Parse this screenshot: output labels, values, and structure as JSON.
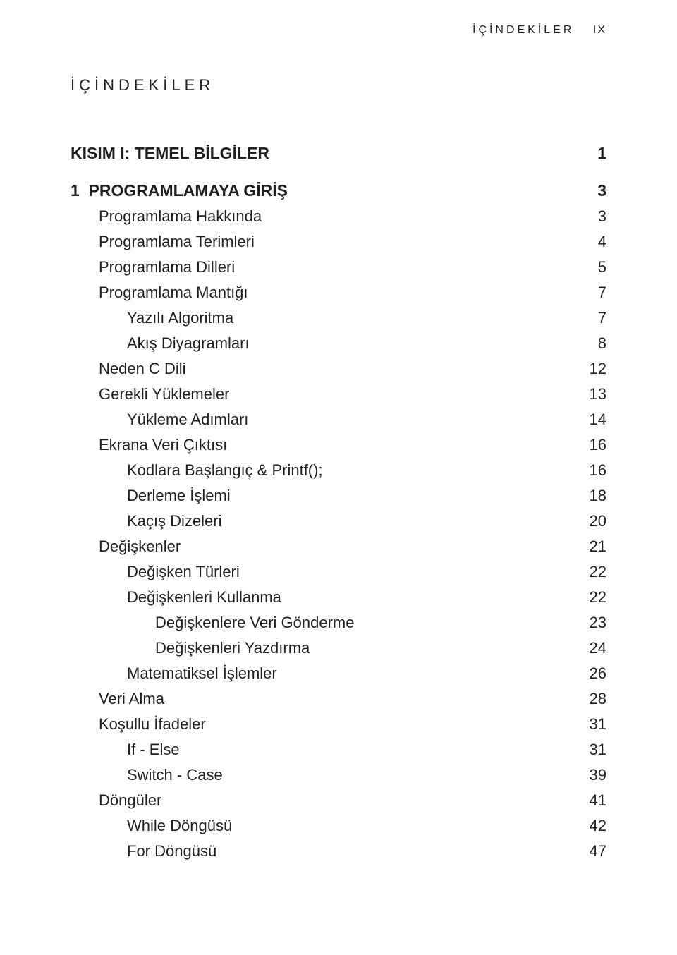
{
  "running_head": {
    "label": "İÇİNDEKİLER",
    "page": "IX"
  },
  "title": "İÇİNDEKİLER",
  "toc": [
    {
      "level": "part",
      "label": "KISIM I: TEMEL BİLGİLER",
      "page": "1"
    },
    {
      "level": "chapter",
      "label": "1  PROGRAMLAMAYA GİRİŞ",
      "page": "3"
    },
    {
      "level": "lvl1",
      "label": "Programlama Hakkında",
      "page": "3"
    },
    {
      "level": "lvl1",
      "label": "Programlama Terimleri",
      "page": "4"
    },
    {
      "level": "lvl1",
      "label": "Programlama Dilleri",
      "page": "5"
    },
    {
      "level": "lvl1",
      "label": "Programlama Mantığı",
      "page": "7"
    },
    {
      "level": "lvl2",
      "label": "Yazılı Algoritma",
      "page": "7"
    },
    {
      "level": "lvl2",
      "label": "Akış Diyagramları",
      "page": "8"
    },
    {
      "level": "lvl1",
      "label": "Neden C Dili",
      "page": "12"
    },
    {
      "level": "lvl1",
      "label": "Gerekli Yüklemeler",
      "page": "13"
    },
    {
      "level": "lvl2",
      "label": "Yükleme Adımları",
      "page": "14"
    },
    {
      "level": "lvl1",
      "label": "Ekrana Veri Çıktısı",
      "page": "16"
    },
    {
      "level": "lvl2",
      "label": "Kodlara Başlangıç & Printf();",
      "page": "16"
    },
    {
      "level": "lvl2",
      "label": "Derleme İşlemi",
      "page": "18"
    },
    {
      "level": "lvl2",
      "label": "Kaçış Dizeleri",
      "page": "20"
    },
    {
      "level": "lvl1",
      "label": "Değişkenler",
      "page": "21"
    },
    {
      "level": "lvl2",
      "label": "Değişken Türleri",
      "page": "22"
    },
    {
      "level": "lvl2",
      "label": "Değişkenleri Kullanma",
      "page": "22"
    },
    {
      "level": "lvl3",
      "label": "Değişkenlere Veri Gönderme",
      "page": "23"
    },
    {
      "level": "lvl3",
      "label": "Değişkenleri Yazdırma",
      "page": "24"
    },
    {
      "level": "lvl2",
      "label": "Matematiksel İşlemler",
      "page": "26"
    },
    {
      "level": "lvl1",
      "label": "Veri Alma",
      "page": "28"
    },
    {
      "level": "lvl1",
      "label": "Koşullu İfadeler",
      "page": "31"
    },
    {
      "level": "lvl2",
      "label": "If - Else",
      "page": "31"
    },
    {
      "level": "lvl2",
      "label": "Switch - Case",
      "page": "39"
    },
    {
      "level": "lvl1",
      "label": "Döngüler",
      "page": "41"
    },
    {
      "level": "lvl2",
      "label": "While Döngüsü",
      "page": "42"
    },
    {
      "level": "lvl2",
      "label": "For Döngüsü",
      "page": "47"
    }
  ]
}
